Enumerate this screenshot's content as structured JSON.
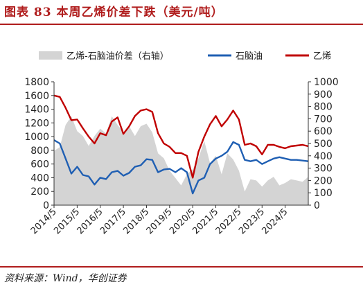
{
  "figure": {
    "title": "图表 83   本周乙烯价差下跌（美元/吨）",
    "source": "资料来源：Wind，华创证券"
  },
  "colors": {
    "accent": "#b01c1c",
    "naphtha": "#1f5fb3",
    "ethylene": "#c00000",
    "spread": "#d4d4d4",
    "axis": "#333333"
  },
  "chart_data": {
    "type": "line",
    "title": "",
    "xlabel": "",
    "ylabel": "",
    "y2label": "",
    "ylim": [
      0,
      1800
    ],
    "y2lim": [
      0,
      1000
    ],
    "yticks": [
      0,
      200,
      400,
      600,
      800,
      1000,
      1200,
      1400,
      1600,
      1800
    ],
    "y2ticks": [
      0,
      100,
      200,
      300,
      400,
      500,
      600,
      700,
      800,
      900,
      1000
    ],
    "xlim": [
      "2014-05",
      "2025-05"
    ],
    "xtick_labels": [
      "2014/5",
      "2015/5",
      "2016/5",
      "2017/5",
      "2018/5",
      "2019/5",
      "2020/5",
      "2021/5",
      "2022/5",
      "2023/5",
      "2024/5"
    ],
    "grid": false,
    "legend_position": "top",
    "series": [
      {
        "name": "乙烯-石脑油价差（右轴）",
        "type": "area",
        "axis": "right",
        "color": "#d4d4d4",
        "x": [
          "2014-05",
          "2014-08",
          "2014-11",
          "2015-02",
          "2015-05",
          "2015-08",
          "2015-11",
          "2016-02",
          "2016-05",
          "2016-08",
          "2016-11",
          "2017-02",
          "2017-05",
          "2017-08",
          "2017-11",
          "2018-02",
          "2018-05",
          "2018-08",
          "2018-11",
          "2019-02",
          "2019-05",
          "2019-08",
          "2019-11",
          "2020-02",
          "2020-05",
          "2020-08",
          "2020-11",
          "2021-02",
          "2021-05",
          "2021-08",
          "2021-11",
          "2022-02",
          "2022-05",
          "2022-08",
          "2022-11",
          "2023-02",
          "2023-05",
          "2023-08",
          "2023-11",
          "2024-02",
          "2024-05",
          "2024-08",
          "2024-11",
          "2025-02",
          "2025-05"
        ],
        "values": [
          440,
          470,
          650,
          720,
          600,
          560,
          480,
          560,
          620,
          580,
          720,
          650,
          590,
          640,
          560,
          640,
          660,
          590,
          420,
          380,
          280,
          220,
          160,
          250,
          290,
          380,
          520,
          340,
          400,
          250,
          420,
          370,
          280,
          110,
          210,
          200,
          150,
          200,
          230,
          160,
          180,
          210,
          200,
          190,
          230
        ]
      },
      {
        "name": "石脑油",
        "type": "line",
        "axis": "left",
        "color": "#1f5fb3",
        "x": [
          "2014-05",
          "2014-08",
          "2014-11",
          "2015-02",
          "2015-05",
          "2015-08",
          "2015-11",
          "2016-02",
          "2016-05",
          "2016-08",
          "2016-11",
          "2017-02",
          "2017-05",
          "2017-08",
          "2017-11",
          "2018-02",
          "2018-05",
          "2018-08",
          "2018-11",
          "2019-02",
          "2019-05",
          "2019-08",
          "2019-11",
          "2020-02",
          "2020-05",
          "2020-08",
          "2020-11",
          "2021-02",
          "2021-05",
          "2021-08",
          "2021-11",
          "2022-02",
          "2022-05",
          "2022-08",
          "2022-11",
          "2023-02",
          "2023-05",
          "2023-08",
          "2023-11",
          "2024-02",
          "2024-05",
          "2024-08",
          "2024-11",
          "2025-02",
          "2025-05"
        ],
        "values": [
          950,
          900,
          680,
          460,
          560,
          440,
          420,
          300,
          400,
          380,
          480,
          500,
          430,
          470,
          560,
          580,
          670,
          660,
          480,
          520,
          530,
          480,
          540,
          480,
          170,
          360,
          400,
          600,
          680,
          720,
          780,
          920,
          880,
          660,
          640,
          660,
          600,
          640,
          680,
          700,
          680,
          660,
          660,
          650,
          640
        ]
      },
      {
        "name": "乙烯",
        "type": "line",
        "axis": "left",
        "color": "#c00000",
        "x": [
          "2014-05",
          "2014-08",
          "2014-11",
          "2015-02",
          "2015-05",
          "2015-08",
          "2015-11",
          "2016-02",
          "2016-05",
          "2016-08",
          "2016-11",
          "2017-02",
          "2017-05",
          "2017-08",
          "2017-11",
          "2018-02",
          "2018-05",
          "2018-08",
          "2018-11",
          "2019-02",
          "2019-05",
          "2019-08",
          "2019-11",
          "2020-02",
          "2020-05",
          "2020-08",
          "2020-11",
          "2021-02",
          "2021-05",
          "2021-08",
          "2021-11",
          "2022-02",
          "2022-05",
          "2022-08",
          "2022-11",
          "2023-02",
          "2023-05",
          "2023-08",
          "2023-11",
          "2024-02",
          "2024-05",
          "2024-08",
          "2024-11",
          "2025-02",
          "2025-05"
        ],
        "values": [
          1600,
          1580,
          1420,
          1240,
          1250,
          1120,
          1000,
          900,
          1050,
          1020,
          1220,
          1280,
          1040,
          1150,
          1300,
          1380,
          1400,
          1360,
          1050,
          900,
          850,
          760,
          760,
          720,
          400,
          780,
          1000,
          1180,
          1300,
          1150,
          1250,
          1380,
          1250,
          880,
          900,
          860,
          740,
          880,
          880,
          850,
          830,
          860,
          870,
          880,
          860
        ]
      }
    ]
  }
}
